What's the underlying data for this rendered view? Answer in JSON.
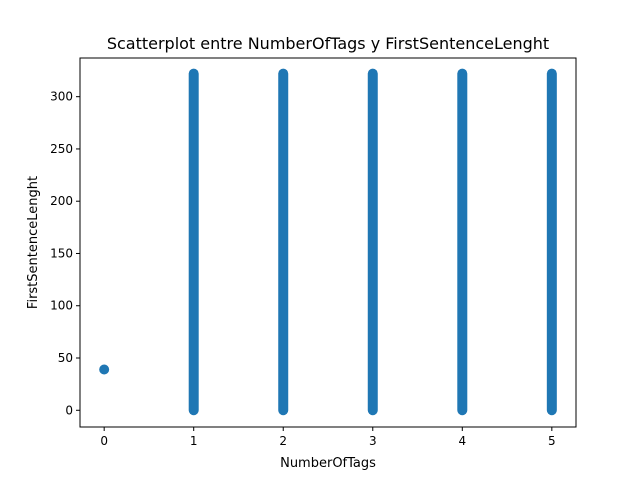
{
  "chart_data": {
    "type": "scatter",
    "title": "Scatterplot entre NumberOfTags y FirstSentenceLenght",
    "xlabel": "NumberOfTags",
    "ylabel": "FirstSentenceLenght",
    "xlim": [
      -0.27,
      5.27
    ],
    "ylim": [
      -16,
      337
    ],
    "xticks": [
      0,
      1,
      2,
      3,
      4,
      5
    ],
    "yticks": [
      0,
      50,
      100,
      150,
      200,
      250,
      300
    ],
    "grid": false,
    "legend": "none",
    "color": "#1f77b4",
    "points": [
      {
        "x": 0,
        "y": 39
      }
    ],
    "ranges": [
      {
        "x": 1,
        "ymin": 0,
        "ymax": 322
      },
      {
        "x": 2,
        "ymin": 0,
        "ymax": 322
      },
      {
        "x": 3,
        "ymin": 0,
        "ymax": 322
      },
      {
        "x": 4,
        "ymin": 0,
        "ymax": 322
      },
      {
        "x": 5,
        "ymin": 0,
        "ymax": 322
      }
    ]
  }
}
